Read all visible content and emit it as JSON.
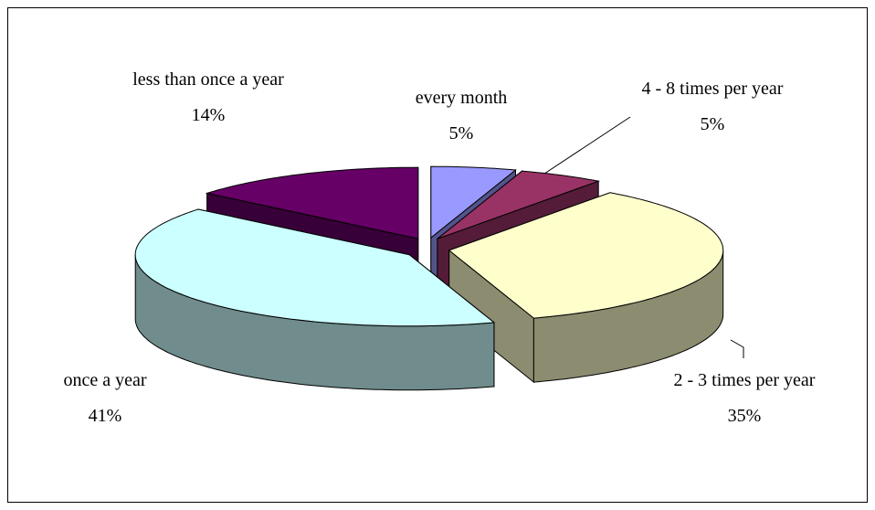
{
  "chart_data": {
    "type": "pie",
    "categories": [
      "every month",
      "4 - 8 times per year",
      "2 - 3 times per year",
      "once a year",
      "less than once a year"
    ],
    "values": [
      5,
      5,
      35,
      41,
      14
    ],
    "value_labels": [
      "5%",
      "5%",
      "35%",
      "41%",
      "14%"
    ],
    "colors": [
      "#9999ff",
      "#993366",
      "#ffffcc",
      "#ccffff",
      "#660066"
    ]
  }
}
